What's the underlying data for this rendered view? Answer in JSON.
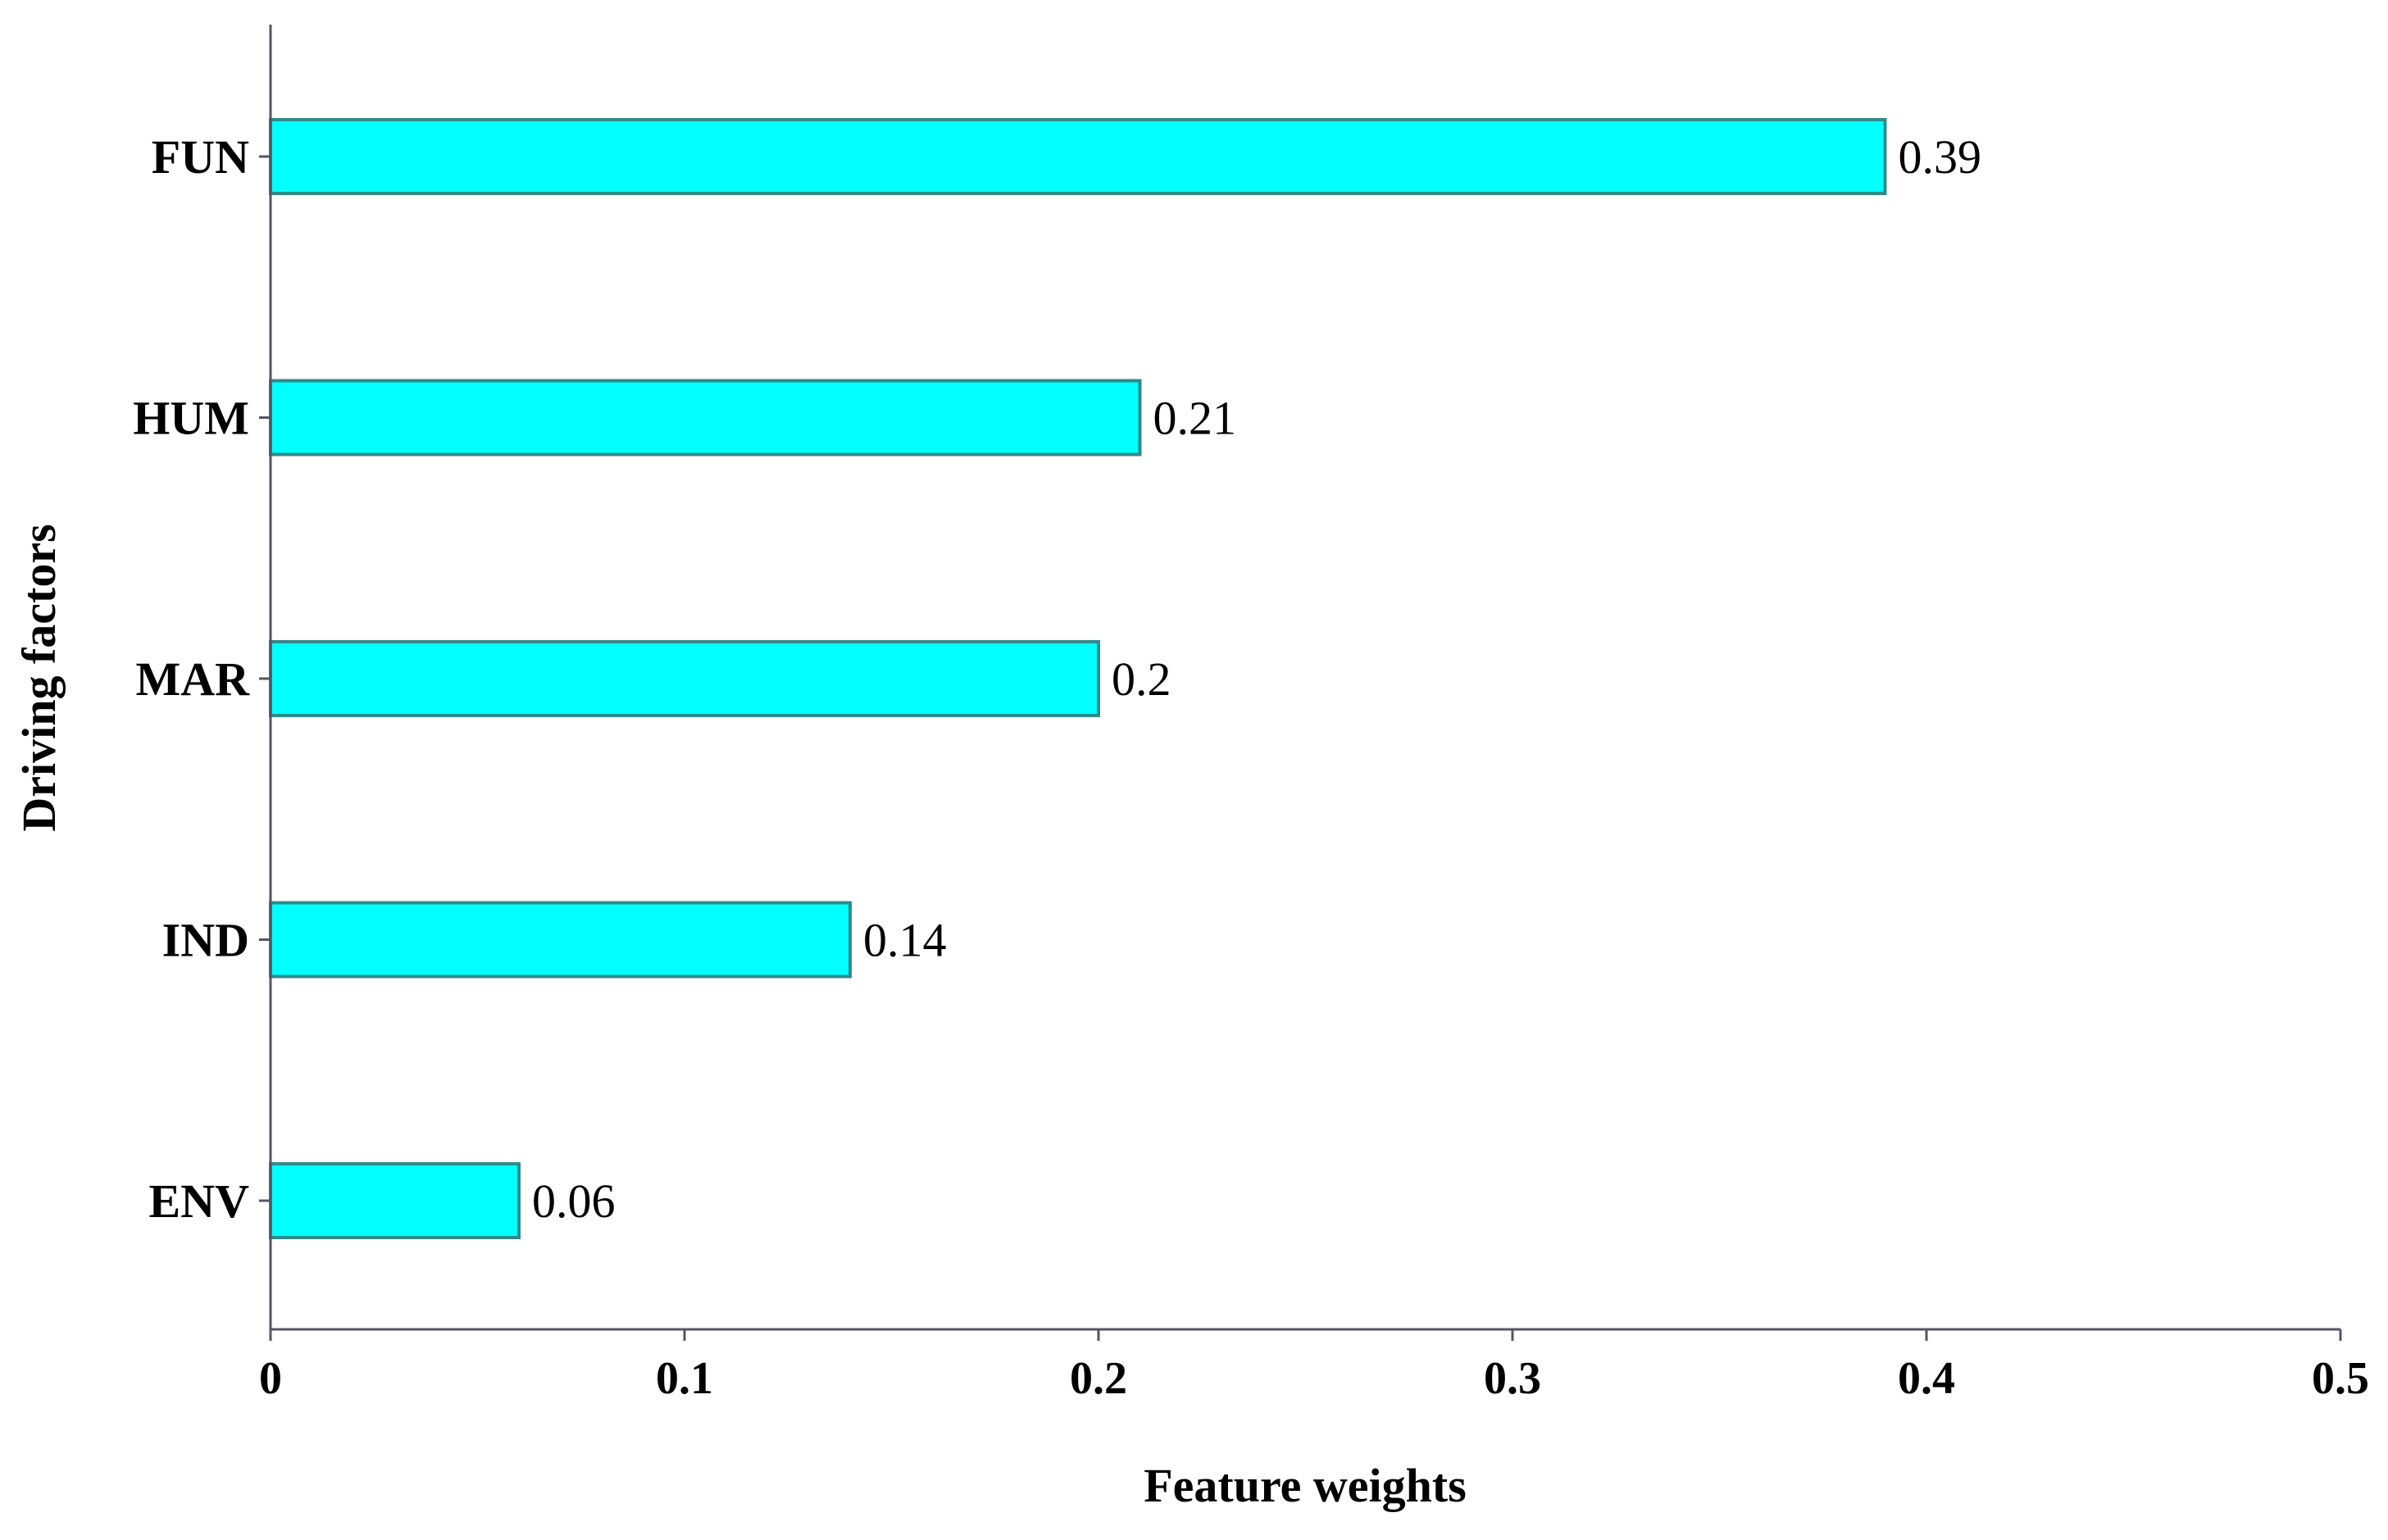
{
  "chart_data": {
    "type": "bar",
    "orientation": "horizontal",
    "categories": [
      "FUN",
      "HUM",
      "MAR",
      "IND",
      "ENV"
    ],
    "values": [
      0.39,
      0.21,
      0.2,
      0.14,
      0.06
    ],
    "data_labels": [
      "0.39",
      "0.21",
      "0.2",
      "0.14",
      "0.06"
    ],
    "xlabel": "Feature weights",
    "ylabel": "Driving factors",
    "xlim": [
      0,
      0.5
    ],
    "xticks": [
      0,
      0.1,
      0.2,
      0.3,
      0.4,
      0.5
    ],
    "xtick_labels": [
      "0",
      "0.1",
      "0.2",
      "0.3",
      "0.4",
      "0.5"
    ],
    "grid": false,
    "legend": "none",
    "colors": {
      "bar_fill": "#00FFFF",
      "bar_stroke": "#2E8B8B",
      "axis": "#555566"
    }
  }
}
